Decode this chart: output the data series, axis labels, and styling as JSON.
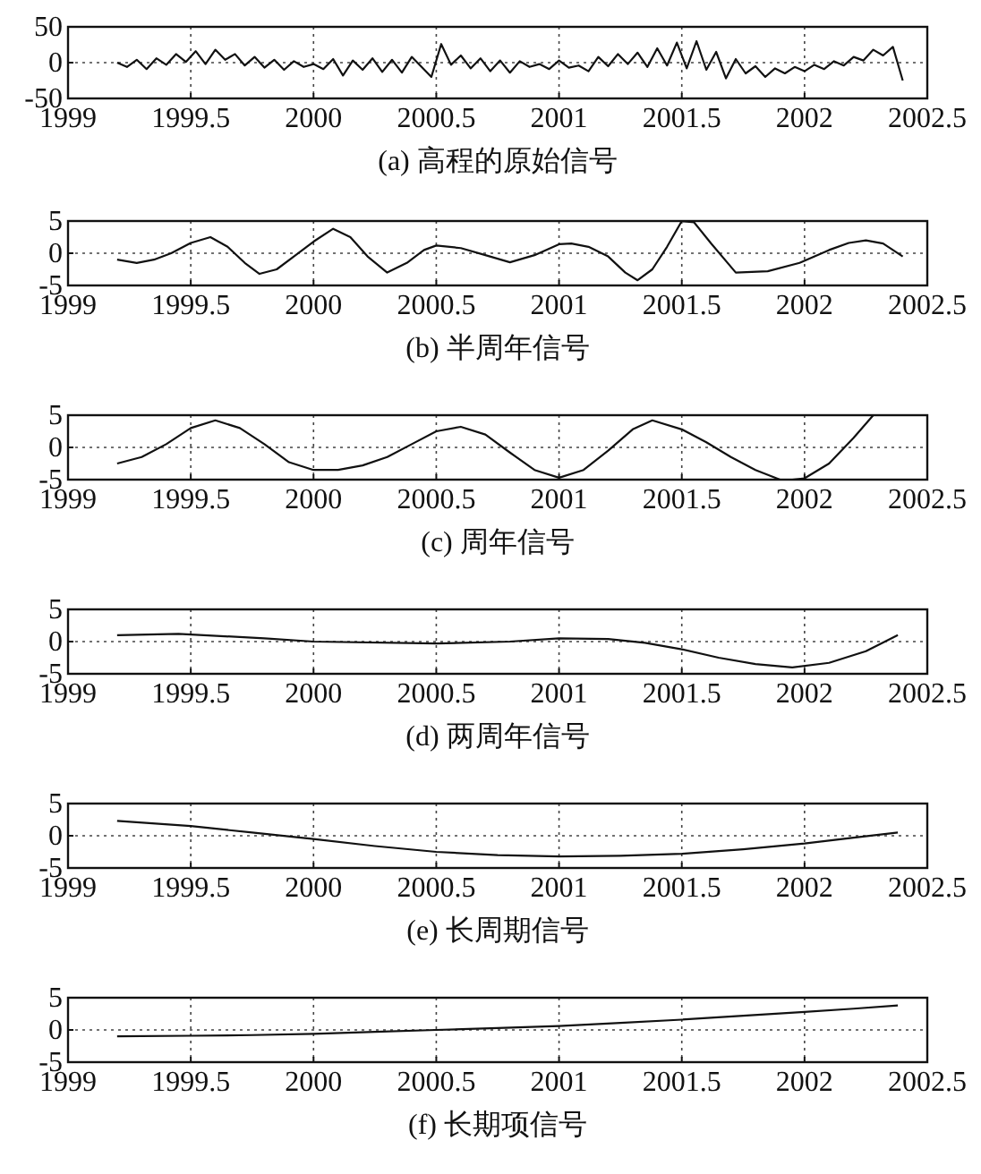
{
  "chart_data": [
    {
      "type": "line",
      "title": "(a) 高程的原始信号",
      "xlim": [
        1999,
        2002.5
      ],
      "xticks": [
        1999,
        1999.5,
        2000,
        2000.5,
        2001,
        2001.5,
        2002,
        2002.5
      ],
      "ylim": [
        -50,
        50
      ],
      "yticks": [
        -50,
        0,
        50
      ],
      "grid": true,
      "color": "#111111",
      "x": [
        1999.2,
        1999.24,
        1999.28,
        1999.32,
        1999.36,
        1999.4,
        1999.44,
        1999.48,
        1999.52,
        1999.56,
        1999.6,
        1999.64,
        1999.68,
        1999.72,
        1999.76,
        1999.8,
        1999.84,
        1999.88,
        1999.92,
        1999.96,
        2000,
        2000.04,
        2000.08,
        2000.12,
        2000.16,
        2000.2,
        2000.24,
        2000.28,
        2000.32,
        2000.36,
        2000.4,
        2000.44,
        2000.48,
        2000.52,
        2000.56,
        2000.6,
        2000.64,
        2000.68,
        2000.72,
        2000.76,
        2000.8,
        2000.84,
        2000.88,
        2000.92,
        2000.96,
        2001,
        2001.04,
        2001.08,
        2001.12,
        2001.16,
        2001.2,
        2001.24,
        2001.28,
        2001.32,
        2001.36,
        2001.4,
        2001.44,
        2001.48,
        2001.52,
        2001.56,
        2001.6,
        2001.64,
        2001.68,
        2001.72,
        2001.76,
        2001.8,
        2001.84,
        2001.88,
        2001.92,
        2001.96,
        2002,
        2002.04,
        2002.08,
        2002.12,
        2002.16,
        2002.2,
        2002.24,
        2002.28,
        2002.32,
        2002.36,
        2002.4
      ],
      "values": [
        0,
        -6,
        4,
        -9,
        6,
        -3,
        12,
        1,
        16,
        -2,
        18,
        4,
        12,
        -4,
        8,
        -7,
        4,
        -10,
        2,
        -6,
        -2,
        -9,
        5,
        -18,
        3,
        -10,
        6,
        -13,
        4,
        -14,
        8,
        -6,
        -20,
        26,
        -3,
        10,
        -8,
        6,
        -12,
        3,
        -14,
        2,
        -6,
        -2,
        -9,
        3,
        -7,
        -4,
        -12,
        8,
        -5,
        12,
        -2,
        14,
        -6,
        20,
        -4,
        28,
        -8,
        30,
        -10,
        15,
        -22,
        5,
        -15,
        -5,
        -20,
        -8,
        -15,
        -6,
        -12,
        -3,
        -9,
        2,
        -4,
        8,
        3,
        18,
        10,
        22,
        -25
      ]
    },
    {
      "type": "line",
      "title": "(b) 半周年信号",
      "xlim": [
        1999,
        2002.5
      ],
      "xticks": [
        1999,
        1999.5,
        2000,
        2000.5,
        2001,
        2001.5,
        2002,
        2002.5
      ],
      "ylim": [
        -5,
        5
      ],
      "yticks": [
        -5,
        0,
        5
      ],
      "grid": true,
      "color": "#111111",
      "x": [
        1999.2,
        1999.28,
        1999.35,
        1999.42,
        1999.5,
        1999.58,
        1999.65,
        1999.72,
        1999.78,
        1999.85,
        1999.92,
        2000,
        2000.08,
        2000.15,
        2000.22,
        2000.3,
        2000.38,
        2000.45,
        2000.5,
        2000.6,
        2000.7,
        2000.8,
        2000.9,
        2001,
        2001.05,
        2001.12,
        2001.2,
        2001.27,
        2001.32,
        2001.38,
        2001.44,
        2001.5,
        2001.55,
        2001.62,
        2001.72,
        2001.85,
        2001.98,
        2002.1,
        2002.18,
        2002.25,
        2002.32,
        2002.4
      ],
      "values": [
        -1,
        -1.5,
        -1,
        0,
        1.6,
        2.5,
        1,
        -1.5,
        -3.2,
        -2.5,
        -0.5,
        1.8,
        3.8,
        2.5,
        -0.5,
        -3,
        -1.5,
        0.5,
        1.2,
        0.8,
        -0.3,
        -1.4,
        -0.3,
        1.4,
        1.5,
        1,
        -0.5,
        -3,
        -4.2,
        -2.5,
        1,
        5,
        4.8,
        1.5,
        -3,
        -2.8,
        -1.5,
        0.5,
        1.6,
        2,
        1.5,
        -0.5
      ]
    },
    {
      "type": "line",
      "title": "(c) 周年信号",
      "xlim": [
        1999,
        2002.5
      ],
      "xticks": [
        1999,
        1999.5,
        2000,
        2000.5,
        2001,
        2001.5,
        2002,
        2002.5
      ],
      "ylim": [
        -5,
        5
      ],
      "yticks": [
        -5,
        0,
        5
      ],
      "grid": true,
      "color": "#111111",
      "x": [
        1999.2,
        1999.3,
        1999.4,
        1999.5,
        1999.6,
        1999.7,
        1999.8,
        1999.9,
        2000,
        2000.1,
        2000.2,
        2000.3,
        2000.4,
        2000.5,
        2000.6,
        2000.7,
        2000.8,
        2000.9,
        2001,
        2001.1,
        2001.2,
        2001.3,
        2001.38,
        2001.5,
        2001.6,
        2001.7,
        2001.8,
        2001.9,
        2001.95,
        2002,
        2002.1,
        2002.2,
        2002.28
      ],
      "values": [
        -2.5,
        -1.5,
        0.5,
        3,
        4.2,
        3,
        0.5,
        -2.3,
        -3.5,
        -3.5,
        -2.8,
        -1.5,
        0.5,
        2.5,
        3.2,
        2,
        -0.8,
        -3.5,
        -4.7,
        -3.5,
        -0.5,
        2.8,
        4.2,
        2.8,
        0.8,
        -1.5,
        -3.5,
        -5,
        -5,
        -4.8,
        -2.5,
        1.5,
        5
      ]
    },
    {
      "type": "line",
      "title": "(d) 两周年信号",
      "xlim": [
        1999,
        2002.5
      ],
      "xticks": [
        1999,
        1999.5,
        2000,
        2000.5,
        2001,
        2001.5,
        2002,
        2002.5
      ],
      "ylim": [
        -5,
        5
      ],
      "yticks": [
        -5,
        0,
        5
      ],
      "grid": true,
      "color": "#111111",
      "x": [
        1999.2,
        1999.45,
        1999.8,
        2000,
        2000.5,
        2000.8,
        2001,
        2001.2,
        2001.35,
        2001.5,
        2001.65,
        2001.8,
        2001.95,
        2002.1,
        2002.25,
        2002.38
      ],
      "values": [
        1,
        1.2,
        0.5,
        0,
        -0.3,
        0,
        0.5,
        0.4,
        -0.2,
        -1.2,
        -2.5,
        -3.5,
        -4,
        -3.3,
        -1.5,
        1
      ]
    },
    {
      "type": "line",
      "title": "(e) 长周期信号",
      "xlim": [
        1999,
        2002.5
      ],
      "xticks": [
        1999,
        1999.5,
        2000,
        2000.5,
        2001,
        2001.5,
        2002,
        2002.5
      ],
      "ylim": [
        -5,
        5
      ],
      "yticks": [
        -5,
        0,
        5
      ],
      "grid": true,
      "color": "#111111",
      "x": [
        1999.2,
        1999.5,
        1999.75,
        2000,
        2000.25,
        2000.5,
        2000.75,
        2001,
        2001.25,
        2001.5,
        2001.75,
        2002,
        2002.2,
        2002.38
      ],
      "values": [
        2.3,
        1.5,
        0.5,
        -0.5,
        -1.6,
        -2.5,
        -3,
        -3.2,
        -3.1,
        -2.8,
        -2.1,
        -1.2,
        -0.3,
        0.5
      ]
    },
    {
      "type": "line",
      "title": "(f) 长期项信号",
      "xlim": [
        1999,
        2002.5
      ],
      "xticks": [
        1999,
        1999.5,
        2000,
        2000.5,
        2001,
        2001.5,
        2002,
        2002.5
      ],
      "ylim": [
        -5,
        5
      ],
      "yticks": [
        -5,
        0,
        5
      ],
      "grid": true,
      "color": "#111111",
      "x": [
        1999.2,
        1999.5,
        1999.75,
        2000,
        2000.25,
        2000.5,
        2000.75,
        2001,
        2001.25,
        2001.5,
        2001.75,
        2002,
        2002.2,
        2002.38
      ],
      "values": [
        -1,
        -0.9,
        -0.8,
        -0.6,
        -0.3,
        0,
        0.3,
        0.6,
        1.1,
        1.6,
        2.2,
        2.8,
        3.3,
        3.8
      ]
    }
  ]
}
